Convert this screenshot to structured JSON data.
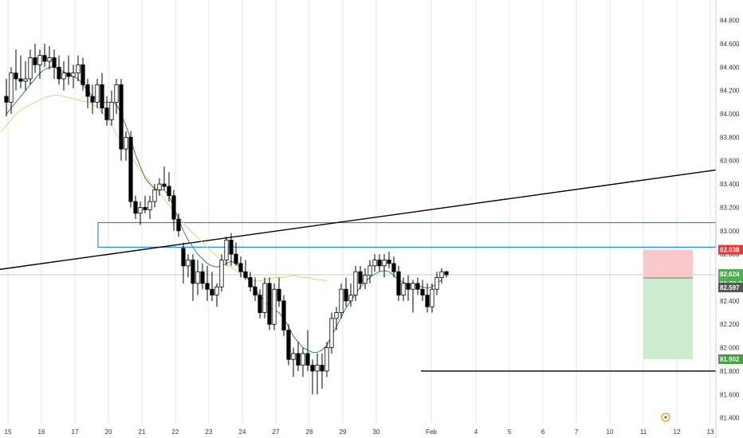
{
  "chart_data": {
    "type": "candlestick",
    "title": "",
    "x_tick_labels": [
      "15",
      "16",
      "17",
      "20",
      "21",
      "22",
      "23",
      "24",
      "27",
      "28",
      "29",
      "30",
      "Feb",
      "4",
      "5",
      "6",
      "7",
      "10",
      "11",
      "12",
      "13"
    ],
    "y_tick_labels": [
      "81.400",
      "81.600",
      "81.800",
      "82.000",
      "82.200",
      "82.400",
      "82.600",
      "82.800",
      "83.000",
      "83.200",
      "83.400",
      "83.600",
      "83.800",
      "84.000",
      "84.200",
      "84.400",
      "84.600",
      "84.800"
    ],
    "y_range": [
      81.35,
      84.92
    ],
    "grid": "vertical",
    "colors": {
      "up": "#ffffff",
      "down": "#000000",
      "candle_outline": "#000000",
      "ma_fast": "#2e8b57",
      "ma_slow": "#f2c777",
      "zone": "#1e88e5",
      "trendline": "#000000",
      "risk": "#f9c8c8",
      "reward": "#cdeccd",
      "stop_tag": "#e53935",
      "target_tag": "#43a047",
      "price_tag": "#4caf50",
      "timer_tag": "#4caf50",
      "entry_tag": "#555555"
    },
    "candles": [
      [
        84.15,
        84.3,
        83.98,
        84.1
      ],
      [
        84.1,
        84.4,
        84.0,
        84.35
      ],
      [
        84.35,
        84.55,
        84.2,
        84.3
      ],
      [
        84.3,
        84.5,
        84.22,
        84.28
      ],
      [
        84.28,
        84.45,
        84.2,
        84.3
      ],
      [
        84.3,
        84.55,
        84.25,
        84.48
      ],
      [
        84.48,
        84.6,
        84.35,
        84.42
      ],
      [
        84.42,
        84.55,
        84.3,
        84.5
      ],
      [
        84.5,
        84.6,
        84.4,
        84.45
      ],
      [
        84.45,
        84.58,
        84.38,
        84.48
      ],
      [
        84.48,
        84.55,
        84.3,
        84.4
      ],
      [
        84.4,
        84.5,
        84.25,
        84.3
      ],
      [
        84.3,
        84.45,
        84.2,
        84.35
      ],
      [
        84.35,
        84.5,
        84.25,
        84.32
      ],
      [
        84.32,
        84.42,
        84.22,
        84.35
      ],
      [
        84.35,
        84.5,
        84.28,
        84.42
      ],
      [
        84.42,
        84.48,
        84.2,
        84.25
      ],
      [
        84.25,
        84.3,
        84.05,
        84.15
      ],
      [
        84.15,
        84.25,
        84.0,
        84.1
      ],
      [
        84.1,
        84.3,
        84.05,
        84.25
      ],
      [
        84.25,
        84.35,
        84.0,
        84.05
      ],
      [
        84.05,
        84.15,
        83.9,
        83.95
      ],
      [
        83.95,
        84.2,
        83.9,
        84.1
      ],
      [
        84.1,
        84.3,
        84.0,
        84.25
      ],
      [
        84.25,
        84.3,
        83.6,
        83.7
      ],
      [
        83.7,
        83.85,
        83.6,
        83.8
      ],
      [
        83.8,
        83.85,
        83.2,
        83.25
      ],
      [
        83.25,
        83.3,
        83.1,
        83.15
      ],
      [
        83.15,
        83.25,
        83.05,
        83.2
      ],
      [
        83.2,
        83.3,
        83.15,
        83.18
      ],
      [
        83.18,
        83.3,
        83.1,
        83.25
      ],
      [
        83.25,
        83.4,
        83.2,
        83.35
      ],
      [
        83.35,
        83.45,
        83.3,
        83.4
      ],
      [
        83.4,
        83.55,
        83.35,
        83.38
      ],
      [
        83.38,
        83.5,
        83.25,
        83.3
      ],
      [
        83.3,
        83.35,
        83.0,
        83.1
      ],
      [
        83.1,
        83.15,
        82.95,
        83.0
      ],
      [
        82.85,
        82.9,
        82.55,
        82.7
      ],
      [
        82.7,
        82.8,
        82.6,
        82.75
      ],
      [
        82.75,
        82.8,
        82.4,
        82.55
      ],
      [
        82.55,
        82.75,
        82.45,
        82.65
      ],
      [
        82.65,
        82.72,
        82.5,
        82.55
      ],
      [
        82.55,
        82.7,
        82.4,
        82.5
      ],
      [
        82.5,
        82.65,
        82.4,
        82.45
      ],
      [
        82.45,
        82.55,
        82.35,
        82.52
      ],
      [
        82.52,
        82.8,
        82.48,
        82.75
      ],
      [
        82.75,
        82.95,
        82.7,
        82.92
      ],
      [
        82.92,
        82.98,
        82.7,
        82.8
      ],
      [
        82.8,
        82.9,
        82.7,
        82.72
      ],
      [
        82.72,
        82.78,
        82.6,
        82.65
      ],
      [
        82.65,
        82.75,
        82.58,
        82.6
      ],
      [
        82.6,
        82.65,
        82.48,
        82.52
      ],
      [
        82.52,
        82.6,
        82.4,
        82.45
      ],
      [
        82.45,
        82.5,
        82.25,
        82.3
      ],
      [
        82.3,
        82.6,
        82.25,
        82.55
      ],
      [
        82.55,
        82.6,
        82.15,
        82.2
      ],
      [
        82.2,
        82.55,
        82.15,
        82.5
      ],
      [
        82.5,
        82.6,
        82.35,
        82.4
      ],
      [
        82.4,
        82.45,
        82.1,
        82.15
      ],
      [
        82.15,
        82.2,
        81.85,
        81.9
      ],
      [
        81.9,
        82.0,
        81.75,
        81.95
      ],
      [
        81.95,
        82.05,
        81.8,
        81.85
      ],
      [
        81.85,
        82.0,
        81.75,
        81.95
      ],
      [
        81.95,
        82.15,
        81.8,
        81.85
      ],
      [
        81.85,
        81.9,
        81.6,
        81.8
      ],
      [
        81.8,
        81.95,
        81.6,
        81.85
      ],
      [
        81.85,
        81.95,
        81.65,
        81.8
      ],
      [
        81.8,
        82.05,
        81.75,
        82.0
      ],
      [
        82.0,
        82.3,
        81.95,
        82.25
      ],
      [
        82.25,
        82.35,
        82.15,
        82.3
      ],
      [
        82.3,
        82.55,
        82.25,
        82.5
      ],
      [
        82.5,
        82.6,
        82.35,
        82.4
      ],
      [
        82.4,
        82.55,
        82.35,
        82.45
      ],
      [
        82.45,
        82.7,
        82.4,
        82.65
      ],
      [
        82.65,
        82.7,
        82.5,
        82.55
      ],
      [
        82.55,
        82.68,
        82.5,
        82.62
      ],
      [
        82.62,
        82.75,
        82.55,
        82.7
      ],
      [
        82.7,
        82.8,
        82.65,
        82.75
      ],
      [
        82.75,
        82.8,
        82.65,
        82.7
      ],
      [
        82.7,
        82.8,
        82.6,
        82.75
      ],
      [
        82.75,
        82.82,
        82.68,
        82.72
      ],
      [
        82.72,
        82.78,
        82.6,
        82.65
      ],
      [
        82.65,
        82.7,
        82.4,
        82.45
      ],
      [
        82.45,
        82.6,
        82.4,
        82.55
      ],
      [
        82.55,
        82.62,
        82.4,
        82.5
      ],
      [
        82.5,
        82.58,
        82.3,
        82.55
      ],
      [
        82.55,
        82.6,
        82.45,
        82.5
      ],
      [
        82.5,
        82.58,
        82.4,
        82.45
      ],
      [
        82.45,
        82.55,
        82.3,
        82.35
      ],
      [
        82.35,
        82.55,
        82.3,
        82.5
      ],
      [
        82.5,
        82.65,
        82.45,
        82.6
      ],
      [
        82.6,
        82.68,
        82.55,
        82.65
      ],
      [
        82.65,
        82.66,
        82.6,
        82.624
      ]
    ],
    "ma_fast_values": [
      84.0,
      84.05,
      84.1,
      84.15,
      84.2,
      84.25,
      84.3,
      84.35,
      84.38,
      84.4,
      84.4,
      84.38,
      84.36,
      84.34,
      84.32,
      84.3,
      84.25,
      84.2,
      84.15,
      84.12,
      84.1,
      84.1,
      84.1,
      84.08,
      84.0,
      83.9,
      83.78,
      83.65,
      83.55,
      83.45,
      83.4,
      83.36,
      83.35,
      83.35,
      83.3,
      83.2,
      83.1,
      83.0,
      82.92,
      82.86,
      82.8,
      82.76,
      82.72,
      82.7,
      82.69,
      82.7,
      82.72,
      82.74,
      82.72,
      82.68,
      82.62,
      82.56,
      82.5,
      82.44,
      82.4,
      82.35,
      82.32,
      82.3,
      82.25,
      82.18,
      82.1,
      82.05,
      82.0,
      81.98,
      81.96,
      81.96,
      81.98,
      82.02,
      82.1,
      82.18,
      82.26,
      82.34,
      82.4,
      82.46,
      82.52,
      82.56,
      82.6,
      82.63,
      82.65,
      82.66,
      82.65,
      82.62,
      82.58,
      82.56,
      82.54,
      82.54,
      82.53,
      82.52,
      82.51,
      82.52,
      82.55,
      82.58
    ],
    "ma_slow_values": [
      83.85,
      83.9,
      83.95,
      84.0,
      84.03,
      84.06,
      84.08,
      84.1,
      84.12,
      84.14,
      84.15,
      84.16,
      84.16,
      84.15,
      84.14,
      84.13,
      84.12,
      84.11,
      84.1,
      84.08,
      84.06,
      84.02,
      83.96,
      83.9,
      83.83,
      83.76,
      83.7,
      83.64,
      83.58,
      83.52,
      83.47,
      83.42,
      83.37,
      83.32,
      83.27,
      83.22,
      83.17,
      83.12,
      83.07,
      83.02,
      82.98,
      82.94,
      82.9,
      82.86,
      82.82,
      82.78,
      82.75,
      82.72,
      82.69,
      82.66,
      82.63,
      82.6,
      82.58,
      82.57,
      82.57,
      82.58,
      82.59,
      82.6,
      82.6,
      82.6,
      82.61,
      82.62,
      82.61,
      82.6,
      82.6,
      82.59,
      82.58,
      82.58,
      82.57
    ],
    "zone_top": 83.07,
    "zone_bottom": 82.86,
    "trendline": [
      [
        0,
        82.67
      ],
      [
        132,
        83.52
      ]
    ],
    "support_level": 81.8,
    "entry_price": 82.597,
    "stop_price": 82.838,
    "target_price": 81.902,
    "last_price": 82.624,
    "price_tags": {
      "stop": "82.838",
      "last": "82.624",
      "timer": "02:20:08",
      "entry": "82.597",
      "target": "81.902"
    }
  }
}
